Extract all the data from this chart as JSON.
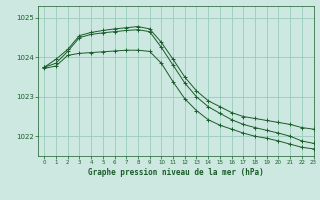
{
  "title": "Graphe pression niveau de la mer (hPa)",
  "bg_color": "#cce8e0",
  "grid_color": "#99ccbb",
  "line_color": "#1a5c2a",
  "xlim": [
    -0.5,
    23
  ],
  "ylim": [
    1021.5,
    1025.3
  ],
  "yticks": [
    1022,
    1023,
    1024,
    1025
  ],
  "xticks": [
    0,
    1,
    2,
    3,
    4,
    5,
    6,
    7,
    8,
    9,
    10,
    11,
    12,
    13,
    14,
    15,
    16,
    17,
    18,
    19,
    20,
    21,
    22,
    23
  ],
  "series": [
    [
      1023.75,
      1023.95,
      1024.2,
      1024.55,
      1024.63,
      1024.68,
      1024.72,
      1024.75,
      1024.78,
      1024.72,
      1024.38,
      1023.95,
      1023.5,
      1023.15,
      1022.9,
      1022.75,
      1022.6,
      1022.5,
      1022.45,
      1022.4,
      1022.35,
      1022.3,
      1022.22,
      1022.18
    ],
    [
      1023.75,
      1023.85,
      1024.15,
      1024.5,
      1024.58,
      1024.62,
      1024.65,
      1024.68,
      1024.7,
      1024.65,
      1024.25,
      1023.8,
      1023.35,
      1023.0,
      1022.75,
      1022.58,
      1022.42,
      1022.3,
      1022.22,
      1022.15,
      1022.08,
      1022.0,
      1021.88,
      1021.82
    ],
    [
      1023.72,
      1023.78,
      1024.05,
      1024.1,
      1024.12,
      1024.14,
      1024.16,
      1024.18,
      1024.18,
      1024.15,
      1023.85,
      1023.38,
      1022.95,
      1022.65,
      1022.42,
      1022.28,
      1022.18,
      1022.08,
      1022.0,
      1021.95,
      1021.88,
      1021.8,
      1021.72,
      1021.68
    ]
  ]
}
